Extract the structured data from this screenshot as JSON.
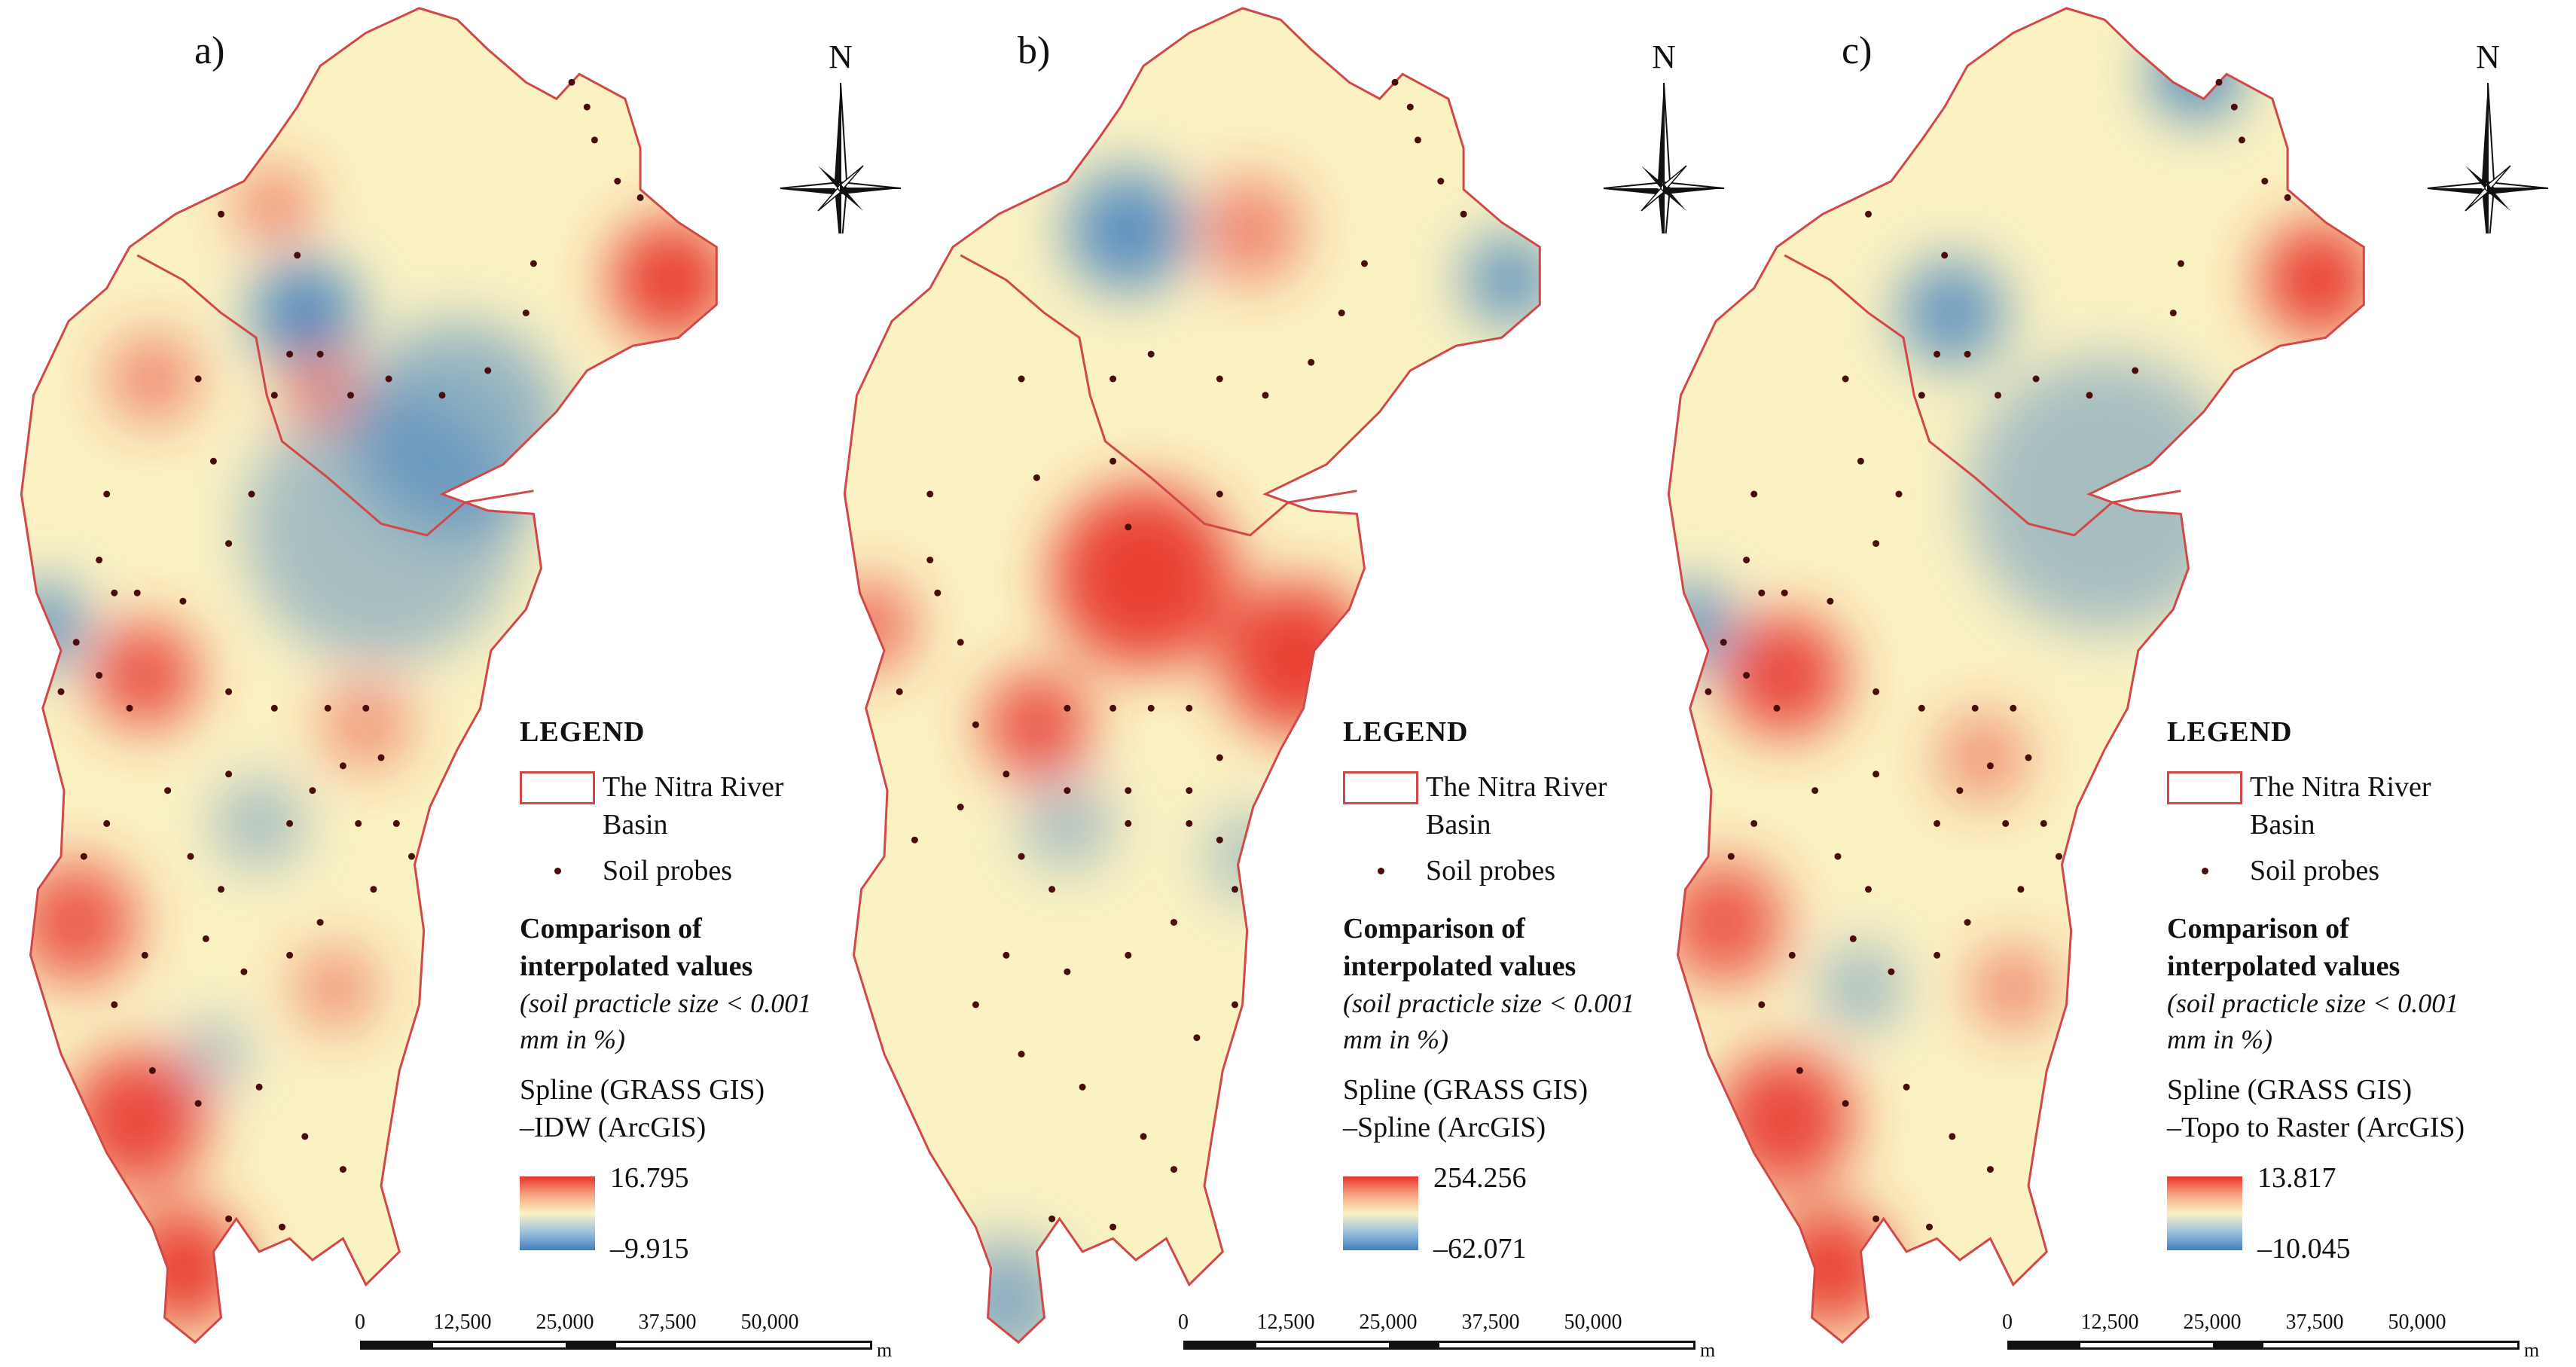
{
  "compass_label": "N",
  "legend": {
    "title": "LEGEND",
    "basin_label": "The Nitra River Basin",
    "probes_label": "Soil probes",
    "comparison_title": "Comparison of interpolated values",
    "comparison_subtitle": "(soil practicle size < 0.001 mm in %)"
  },
  "scalebar": {
    "ticks": [
      "0",
      "12,500",
      "25,000",
      "37,500",
      "50,000"
    ],
    "unit": "m"
  },
  "colors": {
    "high": "#e8352d",
    "mid": "#fbf2c3",
    "low": "#3f7fbf",
    "basin_outline": "#d04848",
    "probe": "#4a0d0d"
  },
  "panels": [
    {
      "label": "a)",
      "method_line1": "Spline (GRASS GIS)",
      "method_line2": "–IDW (ArcGIS)",
      "max": "16.795",
      "min": "–9.915"
    },
    {
      "label": "b)",
      "method_line1": "Spline (GRASS GIS)",
      "method_line2": "–Spline (ArcGIS)",
      "max": "254.256",
      "min": "–62.071"
    },
    {
      "label": "c)",
      "method_line1": "Spline (GRASS GIS)",
      "method_line2": "–Topo to Raster (ArcGIS)",
      "max": "13.817",
      "min": "–10.045"
    }
  ]
}
